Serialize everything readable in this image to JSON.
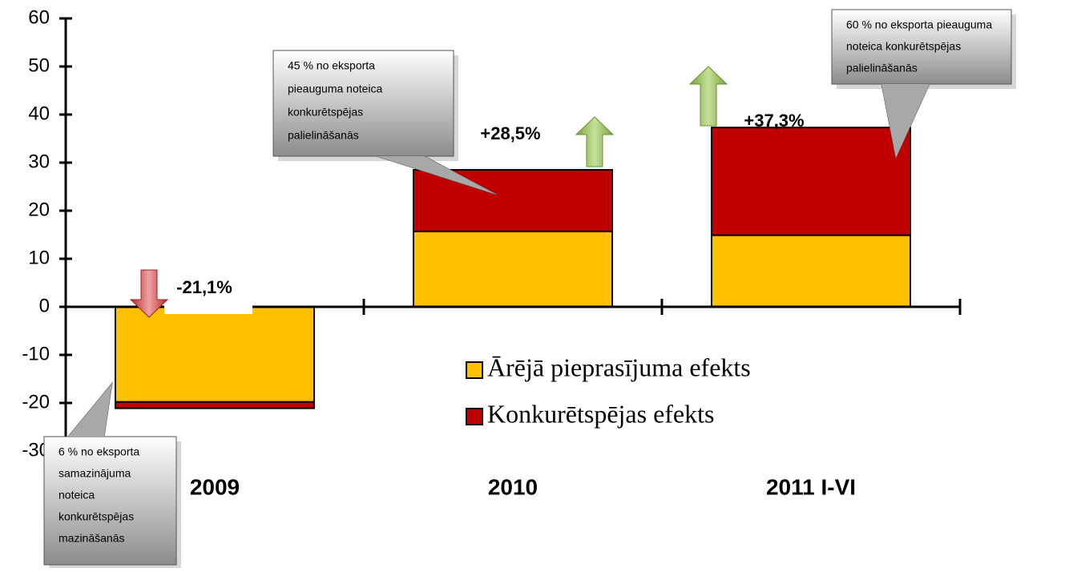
{
  "chart_data": {
    "type": "stacked_bar",
    "categories": [
      "2009",
      "2010",
      "2011 I-VI"
    ],
    "series": [
      {
        "name": "Ārējā pieprasījuma efekts",
        "color": "#ffc000",
        "values": [
          -19.8,
          15.7,
          14.9
        ]
      },
      {
        "name": "Konkurētspējas efekts",
        "color": "#c00000",
        "values": [
          -1.3,
          12.8,
          22.4
        ]
      }
    ],
    "totals": [
      -21.1,
      28.5,
      37.3
    ],
    "total_labels": [
      "-21,1%",
      "+28,5%",
      "+37,3%"
    ],
    "ylim": [
      -30,
      60
    ],
    "yticks": [
      -30,
      -20,
      -10,
      0,
      10,
      20,
      30,
      40,
      50,
      60
    ],
    "annotations": [
      {
        "lines": [
          "6 % no eksporta",
          "samazinājuma",
          "noteica",
          "konkurētspējas",
          "mazināšanās"
        ]
      },
      {
        "lines": [
          "45 % no eksporta",
          "pieauguma noteica",
          "konkurētspējas",
          "palielināšanās"
        ]
      },
      {
        "lines": [
          "60 % no eksporta pieauguma",
          "noteica konkurētspējas",
          "palielināšanās"
        ]
      }
    ],
    "legend": "right"
  }
}
